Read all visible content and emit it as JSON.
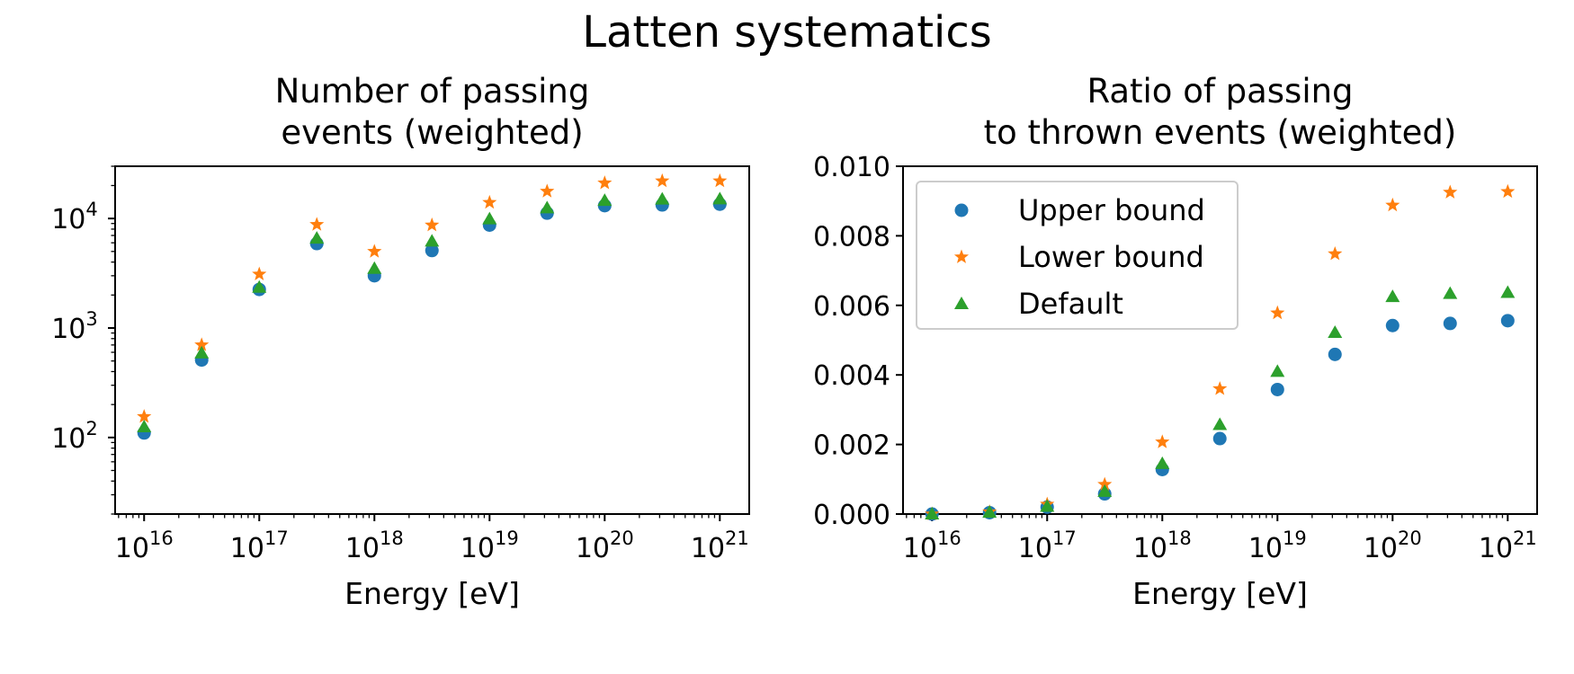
{
  "suptitle": "Latten systematics",
  "colors": {
    "upper": "#1f77b4",
    "lower": "#ff7f0e",
    "default": "#2ca02c"
  },
  "chart_data": [
    {
      "type": "scatter",
      "title_lines": [
        "Number of passing",
        "events (weighted)"
      ],
      "xlabel": "Energy [eV]",
      "ylabel": "",
      "xscale": "log",
      "yscale": "log",
      "xlim": [
        5600000000000000.0,
        1.8e+21
      ],
      "ylim": [
        20,
        30000
      ],
      "xticks": [
        {
          "base": "10",
          "exp": "16"
        },
        {
          "base": "10",
          "exp": "17"
        },
        {
          "base": "10",
          "exp": "18"
        },
        {
          "base": "10",
          "exp": "19"
        },
        {
          "base": "10",
          "exp": "20"
        },
        {
          "base": "10",
          "exp": "21"
        }
      ],
      "yticks": [
        {
          "base": "10",
          "exp": "2"
        },
        {
          "base": "10",
          "exp": "3"
        },
        {
          "base": "10",
          "exp": "4"
        }
      ],
      "x": [
        1e+16,
        3.16e+16,
        1e+17,
        3.16e+17,
        1e+18,
        3.16e+18,
        1e+19,
        3.16e+19,
        1e+20,
        3.16e+20,
        1e+21
      ],
      "series": [
        {
          "name": "Upper bound",
          "marker": "circle",
          "values": [
            110,
            510,
            2250,
            5900,
            3000,
            5100,
            8700,
            11200,
            13100,
            13300,
            13500
          ]
        },
        {
          "name": "Lower bound",
          "marker": "star",
          "values": [
            155,
            700,
            3100,
            8800,
            5000,
            8700,
            14000,
            17700,
            21100,
            22000,
            22000
          ]
        },
        {
          "name": "Default",
          "marker": "triangle",
          "values": [
            125,
            590,
            2350,
            6600,
            3500,
            6200,
            9900,
            12500,
            14600,
            15000,
            15100
          ]
        }
      ],
      "legend": false,
      "grid": false
    },
    {
      "type": "scatter",
      "title_lines": [
        "Ratio of passing",
        "to thrown events (weighted)"
      ],
      "xlabel": "Energy [eV]",
      "ylabel": "",
      "xscale": "log",
      "yscale": "linear",
      "xlim": [
        5600000000000000.0,
        1.8e+21
      ],
      "ylim": [
        0,
        0.01
      ],
      "xticks": [
        {
          "base": "10",
          "exp": "16"
        },
        {
          "base": "10",
          "exp": "17"
        },
        {
          "base": "10",
          "exp": "18"
        },
        {
          "base": "10",
          "exp": "19"
        },
        {
          "base": "10",
          "exp": "20"
        },
        {
          "base": "10",
          "exp": "21"
        }
      ],
      "yticks": [
        "0.000",
        "0.002",
        "0.004",
        "0.006",
        "0.008",
        "0.010"
      ],
      "x": [
        1e+16,
        3.16e+16,
        1e+17,
        3.16e+17,
        1e+18,
        3.16e+18,
        1e+19,
        3.16e+19,
        1e+20,
        3.16e+20,
        1e+21
      ],
      "series": [
        {
          "name": "Upper bound",
          "marker": "circle",
          "values": [
            0.0,
            4e-05,
            0.0002,
            0.00058,
            0.00128,
            0.00217,
            0.00358,
            0.00459,
            0.00542,
            0.00548,
            0.00556
          ]
        },
        {
          "name": "Lower bound",
          "marker": "star",
          "values": [
            0.0,
            6e-05,
            0.00028,
            0.00085,
            0.00207,
            0.0036,
            0.00578,
            0.00748,
            0.00888,
            0.00925,
            0.00927
          ]
        },
        {
          "name": "Default",
          "marker": "triangle",
          "values": [
            0.0,
            5e-05,
            0.00022,
            0.00065,
            0.00145,
            0.00257,
            0.0041,
            0.00522,
            0.00625,
            0.00634,
            0.00637
          ]
        }
      ],
      "legend": true,
      "legend_position": "upper-left",
      "grid": false
    }
  ]
}
